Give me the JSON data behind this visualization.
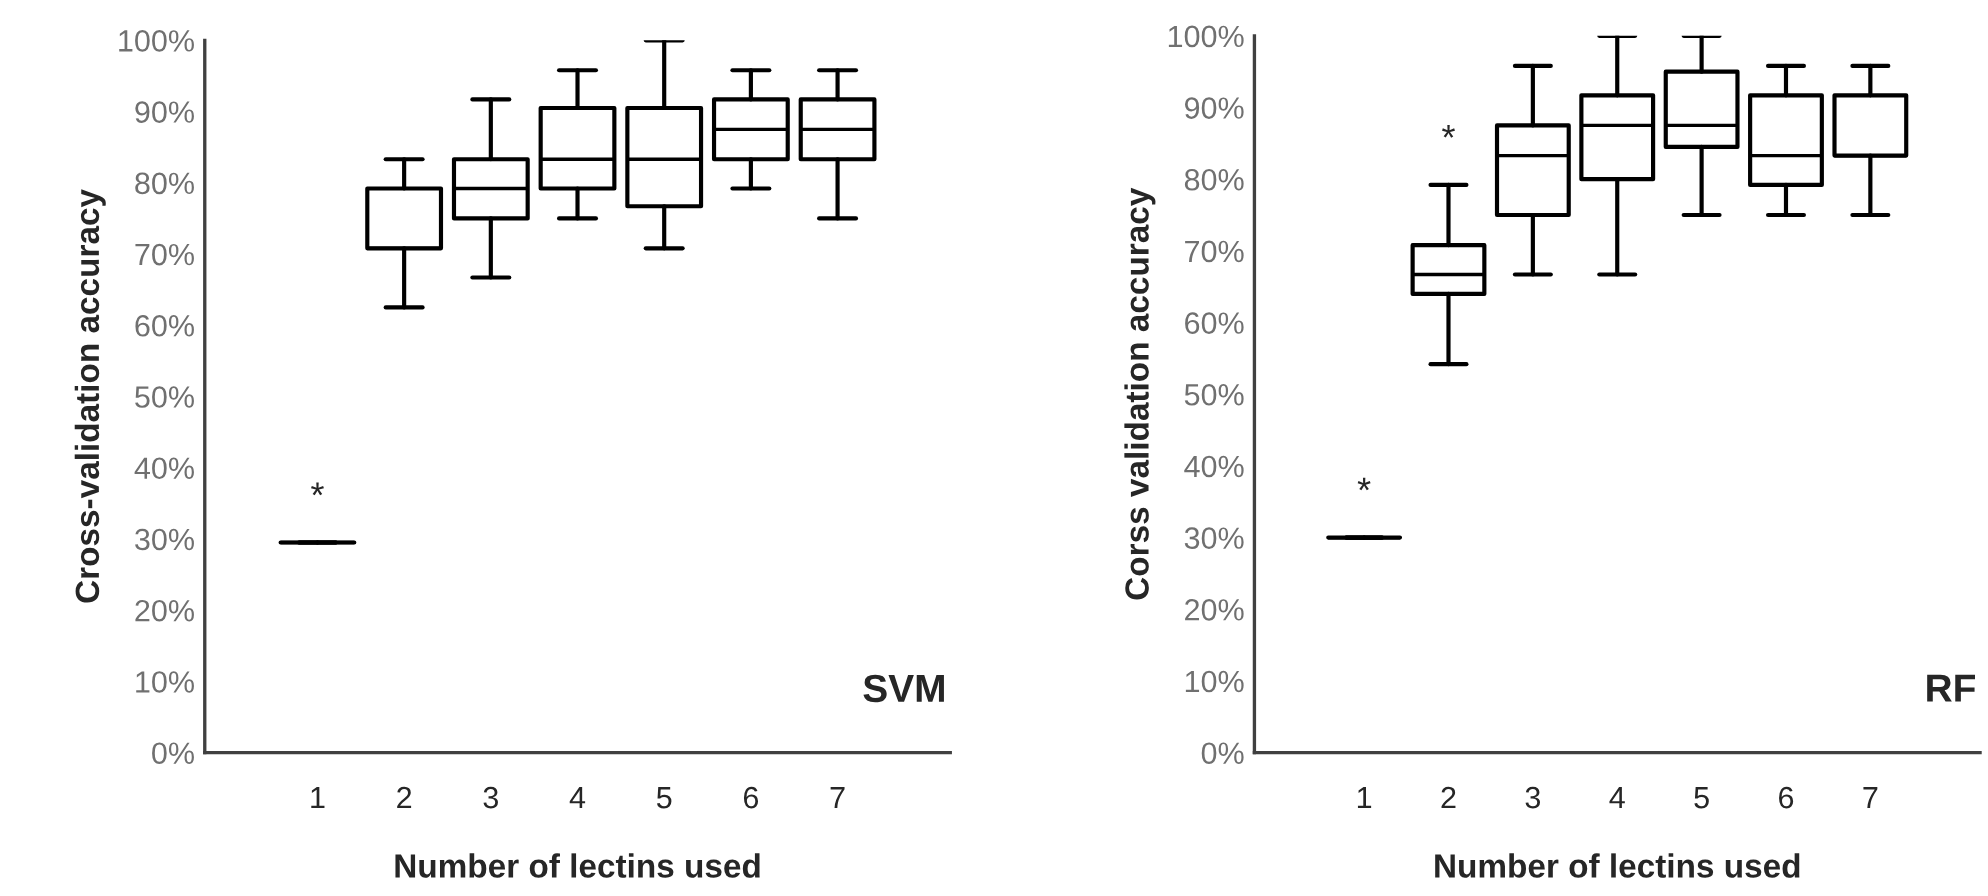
{
  "chart_data": [
    {
      "type": "box",
      "xlabel": "Number of lectins used",
      "ylabel": "Cross-validation accuracy",
      "categories": [
        "1",
        "2",
        "3",
        "4",
        "5",
        "6",
        "7"
      ],
      "boxes": [
        {
          "low": 29.5,
          "q1": 29.5,
          "median": 29.5,
          "q3": 29.5,
          "high": 29.5
        },
        {
          "low": 62.5,
          "q1": 70.8,
          "median": 70.8,
          "q3": 79.2,
          "high": 83.3
        },
        {
          "low": 66.7,
          "q1": 75,
          "median": 79.2,
          "q3": 83.3,
          "high": 91.7
        },
        {
          "low": 75,
          "q1": 79.2,
          "median": 83.3,
          "q3": 90.5,
          "high": 95.8
        },
        {
          "low": 70.8,
          "q1": 76.7,
          "median": 83.3,
          "q3": 90.5,
          "high": 100
        },
        {
          "low": 79.2,
          "q1": 83.3,
          "median": 87.5,
          "q3": 91.7,
          "high": 95.8
        },
        {
          "low": 75,
          "q1": 83.3,
          "median": 87.5,
          "q3": 91.7,
          "high": 95.8
        }
      ],
      "annotations": [
        "*",
        "SVM"
      ],
      "ylim": [
        0,
        100
      ],
      "yticks": [
        {
          "value": 0,
          "label": "0%"
        },
        {
          "value": 10,
          "label": "10%"
        },
        {
          "value": 20,
          "label": "20%"
        },
        {
          "value": 30,
          "label": "30%"
        },
        {
          "value": 40,
          "label": "40%"
        },
        {
          "value": 50,
          "label": "50%"
        },
        {
          "value": 60,
          "label": "60%"
        },
        {
          "value": 70,
          "label": "70%"
        },
        {
          "value": 80,
          "label": "80%"
        },
        {
          "value": 90,
          "label": "90%"
        },
        {
          "value": 100,
          "label": "100%"
        }
      ],
      "grid": false
    },
    {
      "type": "box",
      "xlabel": "Number of lectins used",
      "ylabel": "Corss validation accuracy",
      "categories": [
        "1",
        "2",
        "3",
        "4",
        "5",
        "6",
        "7"
      ],
      "boxes": [
        {
          "low": 30,
          "q1": 30,
          "median": 30,
          "q3": 30,
          "high": 30
        },
        {
          "low": 54.2,
          "q1": 64,
          "median": 66.7,
          "q3": 70.8,
          "high": 79.2
        },
        {
          "low": 66.7,
          "q1": 75,
          "median": 83.3,
          "q3": 87.5,
          "high": 95.8
        },
        {
          "low": 66.7,
          "q1": 80,
          "median": 87.5,
          "q3": 91.7,
          "high": 100
        },
        {
          "low": 75,
          "q1": 84.5,
          "median": 87.5,
          "q3": 95,
          "high": 100
        },
        {
          "low": 75,
          "q1": 79.2,
          "median": 83.3,
          "q3": 91.7,
          "high": 95.8
        },
        {
          "low": 75,
          "q1": 83.3,
          "median": 83.3,
          "q3": 91.7,
          "high": 95.8
        }
      ],
      "annotations": [
        "*",
        "*",
        "RF"
      ],
      "ylim": [
        0,
        100
      ],
      "yticks": [
        {
          "value": 0,
          "label": "0%"
        },
        {
          "value": 10,
          "label": "10%"
        },
        {
          "value": 20,
          "label": "20%"
        },
        {
          "value": 30,
          "label": "30%"
        },
        {
          "value": 40,
          "label": "40%"
        },
        {
          "value": 50,
          "label": "50%"
        },
        {
          "value": 60,
          "label": "60%"
        },
        {
          "value": 70,
          "label": "70%"
        },
        {
          "value": 80,
          "label": "80%"
        },
        {
          "value": 90,
          "label": "90%"
        },
        {
          "value": 100,
          "label": "100%"
        }
      ],
      "grid": false
    }
  ]
}
